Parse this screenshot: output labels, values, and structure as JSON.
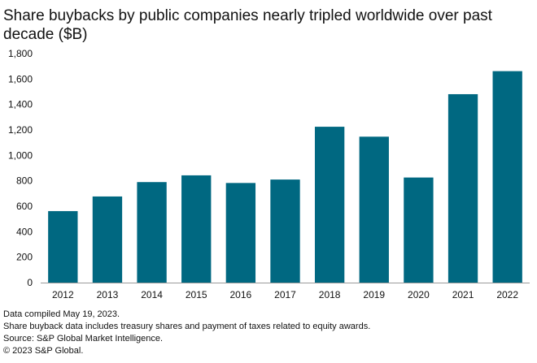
{
  "chart_data": {
    "type": "bar",
    "title": "Share buybacks by public companies nearly tripled worldwide over past decade ($B)",
    "categories": [
      "2012",
      "2013",
      "2014",
      "2015",
      "2016",
      "2017",
      "2018",
      "2019",
      "2020",
      "2021",
      "2022"
    ],
    "values": [
      562,
      677,
      790,
      843,
      783,
      810,
      1225,
      1147,
      826,
      1481,
      1662
    ],
    "xlabel": "",
    "ylabel": "",
    "ylim": [
      0,
      1800
    ],
    "yticks": [
      0,
      200,
      400,
      600,
      800,
      1000,
      1200,
      1400,
      1600,
      1800
    ],
    "ytick_labels": [
      "0",
      "200",
      "400",
      "600",
      "800",
      "1,000",
      "1,200",
      "1,400",
      "1,600",
      "1,800"
    ],
    "grid": false,
    "bar_color": "#006881"
  },
  "footnotes": {
    "line1": "Data compiled May 19, 2023.",
    "line2": "Share buyback data includes treasury shares and payment of taxes related to equity awards.",
    "line3": "Source: S&P Global Market Intelligence.",
    "line4": "© 2023 S&P Global."
  }
}
